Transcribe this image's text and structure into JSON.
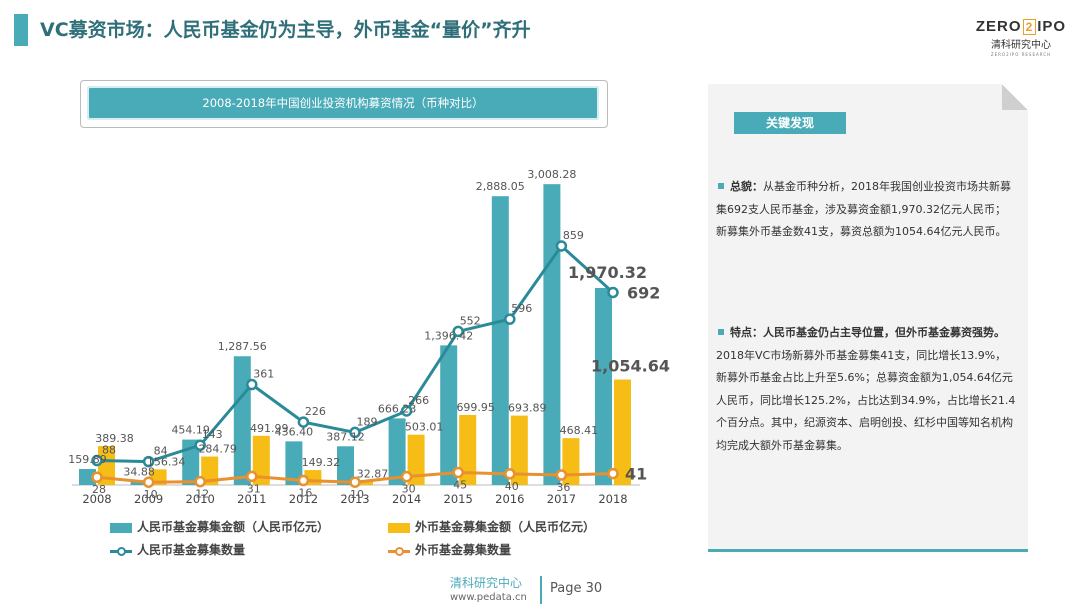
{
  "header": {
    "title": "VC募资市场：人民币基金仍为主导，外币基金“量价”齐升",
    "logo_main": "ZERO",
    "logo_box": "2",
    "logo_tail": "IPO",
    "logo_sub": "清科研究中心",
    "logo_tiny": "ZERO2IPO RESEARCH"
  },
  "chart_data": {
    "type": "bar",
    "title": "2008-2018年中国创业投资机构募资情况（币种对比）",
    "categories": [
      "2008",
      "2009",
      "2010",
      "2011",
      "2012",
      "2013",
      "2014",
      "2015",
      "2016",
      "2017",
      "2018"
    ],
    "series": [
      {
        "name": "人民币基金募集金额（人民币亿元）",
        "kind": "bar",
        "axis": "amount",
        "color": "#4aabb8",
        "values": [
          159.89,
          34.88,
          454.19,
          1287.56,
          436.4,
          387.12,
          666.23,
          1396.42,
          2888.05,
          3008.28,
          1970.32
        ],
        "labels": [
          "159.89",
          "34.88",
          "454.19",
          "1,287.56",
          "436.40",
          "387.12",
          "666.23",
          "1,396.42",
          "2,888.05",
          "3,008.28",
          "1,970.32"
        ]
      },
      {
        "name": "外币基金募集金额（人民币亿元）",
        "kind": "bar",
        "axis": "amount",
        "color": "#f6bd16",
        "values": [
          389.38,
          156.34,
          284.79,
          491.99,
          149.32,
          32.87,
          503.01,
          699.95,
          693.89,
          468.41,
          1054.64
        ],
        "labels": [
          "389.38",
          "156.34",
          "284.79",
          "491.99",
          "149.32",
          "32.87",
          "503.01",
          "699.95",
          "693.89",
          "468.41",
          "1,054.64"
        ]
      },
      {
        "name": "人民币基金募集数量",
        "kind": "line",
        "axis": "count",
        "color": "#2a8a98",
        "values": [
          88,
          84,
          143,
          361,
          226,
          189,
          266,
          552,
          596,
          859,
          692
        ],
        "labels": [
          "88",
          "84",
          "143",
          "361",
          "226",
          "189",
          "266",
          "552",
          "596",
          "859",
          "692"
        ]
      },
      {
        "name": "外币基金募集数量",
        "kind": "line",
        "axis": "count",
        "color": "#e8912e",
        "values": [
          28,
          10,
          12,
          31,
          16,
          10,
          30,
          45,
          40,
          36,
          41
        ],
        "labels": [
          "28",
          "10",
          "12",
          "31",
          "16",
          "10",
          "30",
          "45",
          "40",
          "36",
          "41"
        ]
      }
    ],
    "amount_axis_range": [
      0,
      3200
    ],
    "count_axis_range": [
      0,
      1150
    ],
    "grid": false,
    "legend_position": "bottom"
  },
  "panel": {
    "heading": "关键发现",
    "finding1_lead": "总貌：",
    "finding1_text": "从基金币种分析，2018年我国创业投资市场共新募集692支人民币基金，涉及募资金额1,970.32亿元人民币；新募集外币基金数41支，募资总额为1054.64亿元人民币。",
    "finding2_lead": "特点：人民币基金仍占主导位置，但外币基金募资强势。",
    "finding2_text": "2018年VC市场新募外币基金募集41支，同比增长13.9%，新募外币基金占比上升至5.6%；总募资金额为1,054.64亿元人民币，同比增长125.2%，占比达到34.9%，占比增长21.4个百分点。其中，纪源资本、启明创投、红杉中国等知名机构均完成大额外币基金募集。"
  },
  "footer": {
    "org": "清科研究中心",
    "url": "www.pedata.cn",
    "page": "Page 30"
  }
}
